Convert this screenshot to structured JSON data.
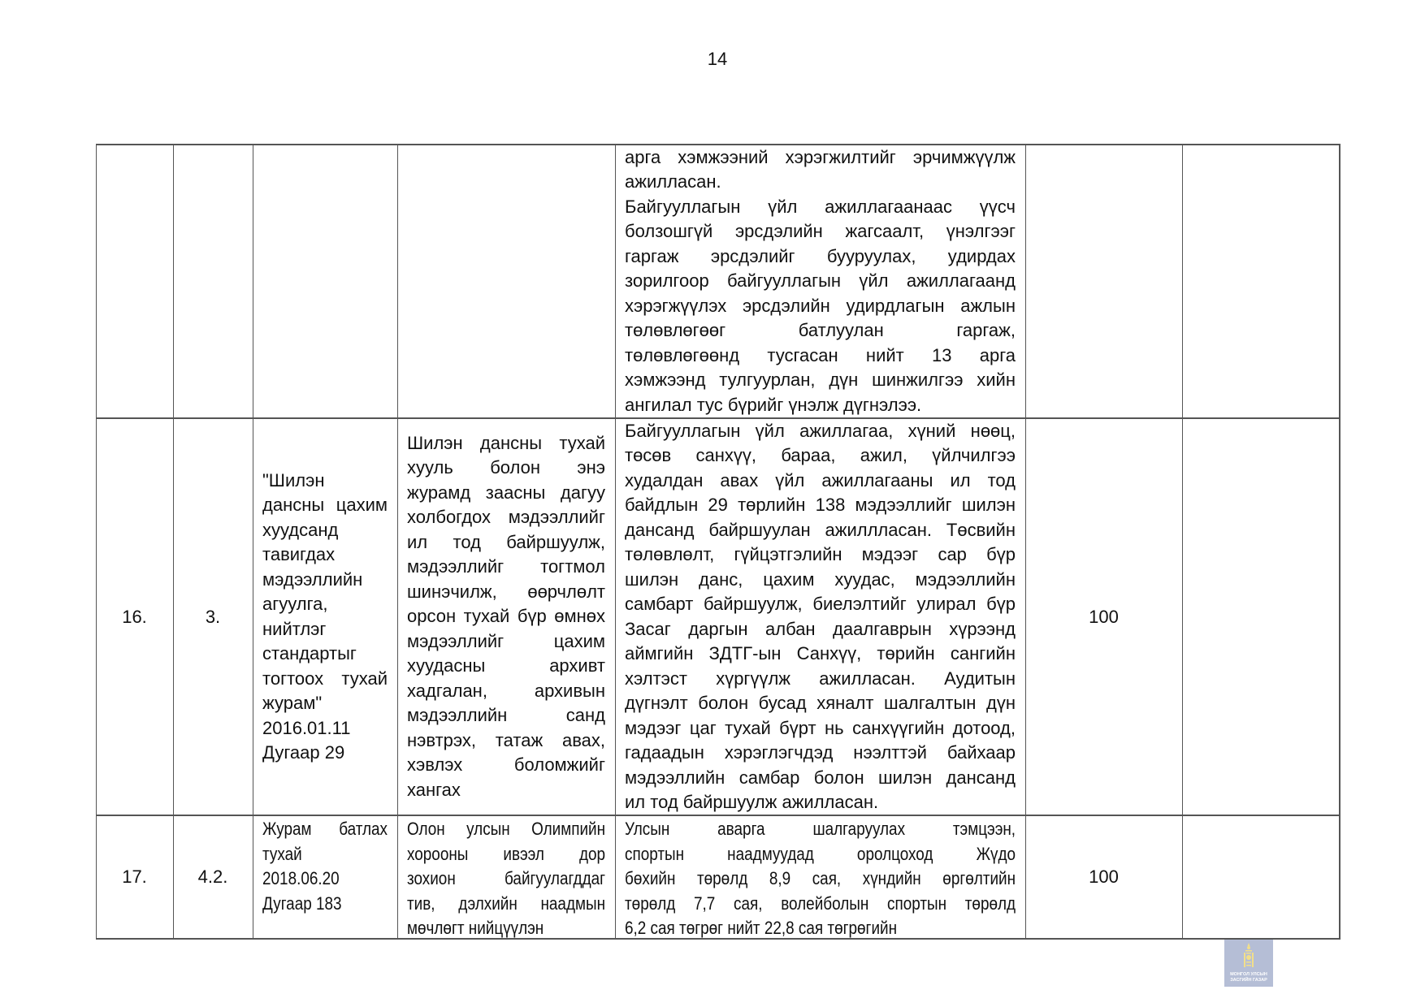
{
  "page_number": "14",
  "logo": {
    "line1": "МОНГОЛ УЛСЫН",
    "line2": "ЗАСГИЙН ГАЗАР",
    "color": "#b5bed6",
    "symbol_color": "#f2df8a"
  },
  "rows": [
    {
      "no": "",
      "sub": "",
      "rule": [],
      "requirement": [],
      "result": [
        [
          "арга хэмжээний хэрэгжилтийг эрчимжүүлж",
          "ажилласан."
        ],
        [
          "Байгууллагын үйл ажиллагаанаас үүсч",
          "болзошгүй эрсдэлийн жагсаалт, үнэлгээг",
          "гаргаж эрсдэлийг бууруулах, удирдах",
          "зорилгоор байгууллагын үйл ажиллагаанд",
          "хэрэгжүүлэх эрсдэлийн удирдлагын ажлын",
          "төлөвлөгөөг батлуулан гаргаж,",
          "төлөвлөгөөнд тусгасан нийт 13 арга",
          "хэмжээнд тулгуурлан, дүн шинжилгээ хийн",
          "ангилал тус бүрийг үнэлж дүгнэлээ."
        ]
      ],
      "score": "",
      "note": ""
    },
    {
      "no": "16.",
      "sub": "3.",
      "rule": [
        [
          "\"Шилэн",
          "дансны цахим",
          "хуудсанд",
          "тавигдах",
          "мэдээллийн",
          "агуулга,",
          "нийтлэг",
          "стандартыг",
          "тогтоох тухай",
          "журам\"",
          "2016.01.11",
          "Дугаар 29"
        ]
      ],
      "requirement": [
        [
          "Шилэн дансны тухай",
          "хууль болон энэ",
          "журамд заасны дагуу",
          "холбогдох мэдээллийг",
          "ил тод байршуулж,",
          "мэдээллийг тогтмол",
          "шинэчилж, өөрчлөлт",
          "орсон тухай бүр өмнөх",
          "мэдээллийг цахим",
          "хуудасны архивт",
          "хадгалан, архивын",
          "мэдээллийн санд",
          "нэвтрэх, татаж авах,",
          "хэвлэх боломжийг",
          "хангах"
        ]
      ],
      "result": [
        [
          "Байгууллагын үйл ажиллагаа, хүний нөөц,",
          "төсөв санхүү, бараа, ажил, үйлчилгээ",
          "худалдан авах үйл ажиллагааны ил тод",
          "байдлын 29 төрлийн 138 мэдээллийг шилэн",
          "дансанд байршуулан ажиллласан. Төсвийн",
          "төлөвлөлт, гүйцэтгэлийн мэдээг сар бүр",
          "шилэн данс, цахим хуудас, мэдээллийн",
          "самбарт байршуулж, биелэлтийг улирал бүр",
          "Засаг даргын албан даалгаврын хүрээнд",
          "аймгийн ЗДТГ-ын Санхүү, төрийн сангийн",
          "хэлтэст хүргүүлж ажилласан. Аудитын",
          "дүгнэлт болон бусад хяналт шалгалтын дүн",
          "мэдээг цаг тухай бүрт нь санхүүгийн дотоод,",
          "гадаадын хэрэглэгчдэд нээлттэй байхаар",
          "мэдээллийн самбар болон шилэн дансанд",
          "ил тод байршуулж ажилласан."
        ]
      ],
      "score": "100",
      "note": ""
    },
    {
      "no": "17.",
      "sub": "4.2.",
      "rule": [
        [
          "Журам батлах",
          "тухай",
          "2018.06.20",
          "Дугаар 183"
        ]
      ],
      "requirement": [
        [
          "Олон улсын Олимпийн",
          "хорооны ивээл дор",
          "зохион байгуулагддаг",
          "тив, дэлхийн наадмын",
          "мөчлөгт нийцүүлэн"
        ]
      ],
      "result": [
        [
          "Улсын аварга шалгаруулах тэмцээн,",
          "спортын наадмуудад оролцоход Жүдо",
          "бөхийн төрөлд 8,9 сая, хүндийн өргөлтийн",
          "төрөлд 7,7 сая, волейболын спортын төрөлд",
          "6,2 сая төгрөг нийт 22,8 сая төгрөгийн"
        ]
      ],
      "score": "100",
      "note": ""
    }
  ]
}
